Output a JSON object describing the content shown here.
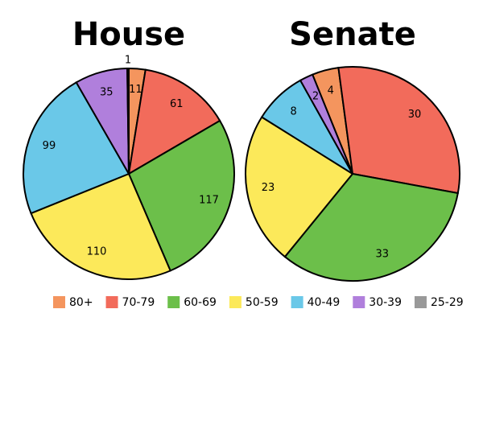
{
  "chart_data": [
    {
      "type": "pie",
      "title": "House",
      "categories": [
        "80+",
        "70-79",
        "60-69",
        "50-59",
        "40-49",
        "30-39",
        "25-29"
      ],
      "values": [
        11,
        61,
        117,
        110,
        99,
        35,
        1
      ],
      "colors": [
        "#f4955e",
        "#f26b5b",
        "#6cbf4a",
        "#fce95a",
        "#6ac8e8",
        "#b07fdc",
        "#999999"
      ]
    },
    {
      "type": "pie",
      "title": "Senate",
      "categories": [
        "80+",
        "70-79",
        "60-69",
        "50-59",
        "40-49",
        "30-39",
        "25-29"
      ],
      "values": [
        4,
        30,
        33,
        23,
        8,
        2,
        null
      ],
      "colors": [
        "#f4955e",
        "#f26b5b",
        "#6cbf4a",
        "#fce95a",
        "#6ac8e8",
        "#b07fdc",
        "#999999"
      ]
    }
  ]
}
